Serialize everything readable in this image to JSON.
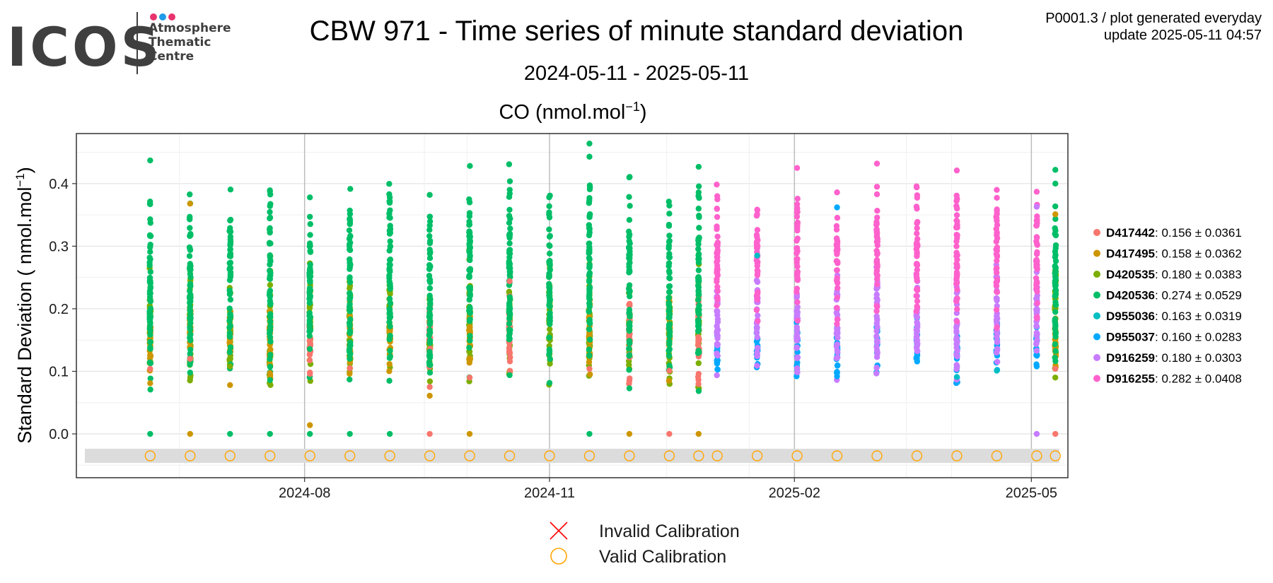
{
  "logo": {
    "wordmark": "ICOS",
    "lines": [
      "Atmosphere",
      "Thematic",
      "Centre"
    ],
    "dot_colors": [
      "#e8336d",
      "#1e9be8",
      "#e8336d"
    ]
  },
  "header": {
    "title": "CBW 971 - Time series of minute standard deviation",
    "date_range": "2024-05-11 - 2025-05-11",
    "plot_id": "P0001.3 / plot generated everyday",
    "update": "update  2025-05-11 04:57"
  },
  "chart_data": {
    "type": "scatter",
    "panel_title": "CO (nmol.mol",
    "panel_title_sup": "−1",
    "panel_title_end": ")",
    "ylabel": "Standard Deviation ( nmol.mol",
    "ylabel_sup": "−1",
    "ylabel_end": ")",
    "xlim": [
      "2024-05-11",
      "2025-05-11"
    ],
    "ylim": [
      -0.07,
      0.48
    ],
    "x_ticks": [
      "2024-08",
      "2024-11",
      "2025-02",
      "2025-05"
    ],
    "y_ticks": [
      "0.0",
      "0.1",
      "0.2",
      "0.3",
      "0.4"
    ],
    "y_tick_values": [
      0.0,
      0.1,
      0.2,
      0.3,
      0.4
    ],
    "grid": true,
    "legend_position": "right",
    "series": [
      {
        "name": "D417442",
        "stat": ": 0.156 ± 0.0361",
        "color": "#f8766d"
      },
      {
        "name": "D417495",
        "stat": ": 0.158 ± 0.0362",
        "color": "#cd9600"
      },
      {
        "name": "D420535",
        "stat": ": 0.180 ± 0.0383",
        "color": "#7cae00"
      },
      {
        "name": "D420536",
        "stat": ": 0.274 ± 0.0529",
        "color": "#00be67"
      },
      {
        "name": "D955036",
        "stat": ": 0.163 ± 0.0319",
        "color": "#00bfc4"
      },
      {
        "name": "D955037",
        "stat": ": 0.160 ± 0.0283",
        "color": "#00a9ff"
      },
      {
        "name": "D916259",
        "stat": ": 0.180 ± 0.0303",
        "color": "#c77cff"
      },
      {
        "name": "D916255",
        "stat": ": 0.282 ± 0.0408",
        "color": "#ff61cc"
      }
    ],
    "clusters": [
      {
        "date": "2024-06-04",
        "groups": [
          [
            "D420535",
            0.11,
            0.22
          ],
          [
            "D417495",
            0.11,
            0.18
          ],
          [
            "D420536",
            0.12,
            0.33
          ]
        ],
        "extras": [
          [
            "D420536",
            0.437
          ],
          [
            "D420536",
            0.367
          ],
          [
            "D420536",
            0.343
          ],
          [
            "D417442",
            0.104
          ],
          [
            "D417495",
            0.081
          ],
          [
            "D420536",
            0.0
          ]
        ]
      },
      {
        "date": "2024-06-19",
        "groups": [
          [
            "D420535",
            0.11,
            0.23
          ],
          [
            "D417495",
            0.11,
            0.2
          ],
          [
            "D420536",
            0.13,
            0.35
          ]
        ],
        "extras": [
          [
            "D417495",
            0.368
          ],
          [
            "D420536",
            0.098
          ],
          [
            "D417442",
            0.12
          ],
          [
            "D417495",
            0.0
          ]
        ]
      },
      {
        "date": "2024-07-04",
        "groups": [
          [
            "D420535",
            0.12,
            0.23
          ],
          [
            "D417495",
            0.12,
            0.19
          ],
          [
            "D420536",
            0.14,
            0.33
          ]
        ],
        "extras": [
          [
            "D420536",
            0.341
          ],
          [
            "D417495",
            0.078
          ],
          [
            "D420535",
            0.108
          ],
          [
            "D420536",
            0.0
          ]
        ]
      },
      {
        "date": "2024-07-19",
        "groups": [
          [
            "D420535",
            0.11,
            0.24
          ],
          [
            "D417495",
            0.1,
            0.2
          ],
          [
            "D420536",
            0.15,
            0.35
          ]
        ],
        "extras": [
          [
            "D420536",
            0.364
          ],
          [
            "D417495",
            0.097
          ],
          [
            "D420536",
            0.0
          ]
        ]
      },
      {
        "date": "2024-08-03",
        "groups": [
          [
            "D420535",
            0.11,
            0.23
          ],
          [
            "D417442",
            0.11,
            0.18
          ],
          [
            "D420536",
            0.14,
            0.33
          ]
        ],
        "extras": [
          [
            "D420536",
            0.378
          ],
          [
            "D420536",
            0.347
          ],
          [
            "D417442",
            0.096
          ],
          [
            "D417495",
            0.014
          ],
          [
            "D420536",
            0.0
          ]
        ]
      },
      {
        "date": "2024-08-18",
        "groups": [
          [
            "D420535",
            0.11,
            0.23
          ],
          [
            "D417495",
            0.11,
            0.19
          ],
          [
            "D420536",
            0.13,
            0.34
          ]
        ],
        "extras": [
          [
            "D420536",
            0.357
          ],
          [
            "D417442",
            0.105
          ],
          [
            "D420536",
            0.0
          ]
        ]
      },
      {
        "date": "2024-09-02",
        "groups": [
          [
            "D420535",
            0.12,
            0.23
          ],
          [
            "D417495",
            0.12,
            0.19
          ],
          [
            "D420536",
            0.14,
            0.34
          ]
        ],
        "extras": [
          [
            "D420536",
            0.378
          ],
          [
            "D420536",
            0.372
          ],
          [
            "D420536",
            0.0
          ]
        ]
      },
      {
        "date": "2024-09-17",
        "groups": [
          [
            "D420535",
            0.11,
            0.22
          ],
          [
            "D417442",
            0.11,
            0.19
          ],
          [
            "D420536",
            0.13,
            0.33
          ]
        ],
        "extras": [
          [
            "D420536",
            0.382
          ],
          [
            "D417442",
            0.075
          ],
          [
            "D417495",
            0.061
          ],
          [
            "D417442",
            0.0
          ]
        ]
      },
      {
        "date": "2024-10-02",
        "groups": [
          [
            "D420535",
            0.11,
            0.24
          ],
          [
            "D417495",
            0.11,
            0.2
          ],
          [
            "D420536",
            0.13,
            0.35
          ]
        ],
        "extras": [
          [
            "D420536",
            0.37
          ],
          [
            "D417442",
            0.09
          ],
          [
            "D417495",
            0.0
          ]
        ]
      },
      {
        "date": "2024-10-17",
        "groups": [
          [
            "D420535",
            0.12,
            0.24
          ],
          [
            "D417442",
            0.12,
            0.2
          ],
          [
            "D420536",
            0.15,
            0.38
          ]
        ],
        "extras": [
          [
            "D417442",
            0.244
          ]
        ]
      },
      {
        "date": "2024-11-01",
        "groups": [
          [
            "D420535",
            0.11,
            0.24
          ],
          [
            "D420536",
            0.14,
            0.34
          ]
        ],
        "extras": [
          [
            "D420536",
            0.346
          ]
        ]
      },
      {
        "date": "2024-11-16",
        "groups": [
          [
            "D420535",
            0.11,
            0.23
          ],
          [
            "D417495",
            0.11,
            0.2
          ],
          [
            "D420536",
            0.14,
            0.36
          ]
        ],
        "extras": [
          [
            "D420536",
            0.464
          ],
          [
            "D420536",
            0.443
          ],
          [
            "D420536",
            0.377
          ],
          [
            "D417442",
            0.104
          ],
          [
            "D420536",
            0.0
          ]
        ]
      },
      {
        "date": "2024-12-01",
        "groups": [
          [
            "D420535",
            0.11,
            0.22
          ],
          [
            "D417442",
            0.12,
            0.21
          ],
          [
            "D420536",
            0.14,
            0.33
          ]
        ],
        "extras": [
          [
            "D420536",
            0.342
          ],
          [
            "D417442",
            0.085
          ],
          [
            "D417495",
            0.0
          ]
        ]
      },
      {
        "date": "2024-12-16",
        "groups": [
          [
            "D420535",
            0.11,
            0.23
          ],
          [
            "D417495",
            0.11,
            0.19
          ],
          [
            "D420536",
            0.14,
            0.32
          ]
        ],
        "extras": [
          [
            "D420536",
            0.352
          ],
          [
            "D417442",
            0.101
          ],
          [
            "D417442",
            0.0
          ]
        ]
      },
      {
        "date": "2024-12-27",
        "groups": [
          [
            "D420535",
            0.1,
            0.24
          ],
          [
            "D417442",
            0.1,
            0.2
          ],
          [
            "D420536",
            0.14,
            0.35
          ]
        ],
        "extras": [
          [
            "D420536",
            0.386
          ],
          [
            "D420536",
            0.36
          ],
          [
            "D417442",
            0.096
          ],
          [
            "D417495",
            0.0
          ]
        ]
      },
      {
        "date": "2025-01-03",
        "groups": [
          [
            "D955037",
            0.1,
            0.16
          ],
          [
            "D916259",
            0.13,
            0.24
          ],
          [
            "D916255",
            0.2,
            0.35
          ]
        ],
        "extras": [
          [
            "D916255",
            0.38
          ]
        ]
      },
      {
        "date": "2025-01-18",
        "groups": [
          [
            "D955037",
            0.11,
            0.17
          ],
          [
            "D916259",
            0.13,
            0.23
          ],
          [
            "D916255",
            0.21,
            0.34
          ]
        ],
        "extras": [
          [
            "D916255",
            0.351
          ],
          [
            "D955036",
            0.285
          ]
        ]
      },
      {
        "date": "2025-02-02",
        "groups": [
          [
            "D955037",
            0.11,
            0.17
          ],
          [
            "D916259",
            0.13,
            0.24
          ],
          [
            "D916255",
            0.22,
            0.36
          ]
        ],
        "extras": [
          [
            "D916255",
            0.425
          ],
          [
            "D916255",
            0.367
          ]
        ]
      },
      {
        "date": "2025-02-17",
        "groups": [
          [
            "D955037",
            0.1,
            0.16
          ],
          [
            "D916259",
            0.12,
            0.24
          ],
          [
            "D916255",
            0.21,
            0.34
          ]
        ],
        "extras": [
          [
            "D955037",
            0.362
          ],
          [
            "D916255",
            0.386
          ],
          [
            "D955037",
            0.092
          ]
        ]
      },
      {
        "date": "2025-03-04",
        "groups": [
          [
            "D955037",
            0.11,
            0.16
          ],
          [
            "D916259",
            0.12,
            0.24
          ],
          [
            "D916255",
            0.21,
            0.35
          ]
        ],
        "extras": [
          [
            "D916255",
            0.432
          ],
          [
            "D916255",
            0.395
          ],
          [
            "D916255",
            0.383
          ]
        ]
      },
      {
        "date": "2025-03-19",
        "groups": [
          [
            "D955037",
            0.11,
            0.17
          ],
          [
            "D916259",
            0.13,
            0.24
          ],
          [
            "D916255",
            0.21,
            0.36
          ]
        ],
        "extras": [
          [
            "D916255",
            0.36
          ]
        ]
      },
      {
        "date": "2025-04-03",
        "groups": [
          [
            "D955037",
            0.1,
            0.16
          ],
          [
            "D916259",
            0.12,
            0.24
          ],
          [
            "D916255",
            0.22,
            0.37
          ]
        ],
        "extras": [
          [
            "D916255",
            0.421
          ],
          [
            "D955036",
            0.091
          ]
        ]
      },
      {
        "date": "2025-04-18",
        "groups": [
          [
            "D955037",
            0.11,
            0.17
          ],
          [
            "D916259",
            0.13,
            0.24
          ],
          [
            "D916255",
            0.22,
            0.36
          ]
        ],
        "extras": [
          [
            "D916255",
            0.39
          ],
          [
            "D955036",
            0.101
          ]
        ]
      },
      {
        "date": "2025-05-03",
        "groups": [
          [
            "D955037",
            0.11,
            0.16
          ],
          [
            "D916259",
            0.13,
            0.24
          ],
          [
            "D916255",
            0.21,
            0.35
          ]
        ],
        "extras": [
          [
            "D916255",
            0.387
          ],
          [
            "D916259",
            0.363
          ],
          [
            "D916255",
            0.333
          ],
          [
            "D916259",
            0.0
          ]
        ]
      },
      {
        "date": "2025-05-10",
        "groups": [
          [
            "D420535",
            0.11,
            0.24
          ],
          [
            "D417495",
            0.11,
            0.19
          ],
          [
            "D420536",
            0.15,
            0.34
          ]
        ],
        "extras": [
          [
            "D420536",
            0.422
          ],
          [
            "D420536",
            0.4
          ],
          [
            "D417495",
            0.351
          ],
          [
            "D417442",
            0.104
          ],
          [
            "D417442",
            0.0
          ]
        ]
      }
    ],
    "calibration_level": -0.035,
    "calibration_status": "valid",
    "calibration_color": "#ffa500",
    "invalid_color": "#ff0000",
    "cal_legend": [
      {
        "marker": "cross",
        "label": "Invalid Calibration"
      },
      {
        "marker": "circle",
        "label": "Valid Calibration"
      }
    ]
  }
}
